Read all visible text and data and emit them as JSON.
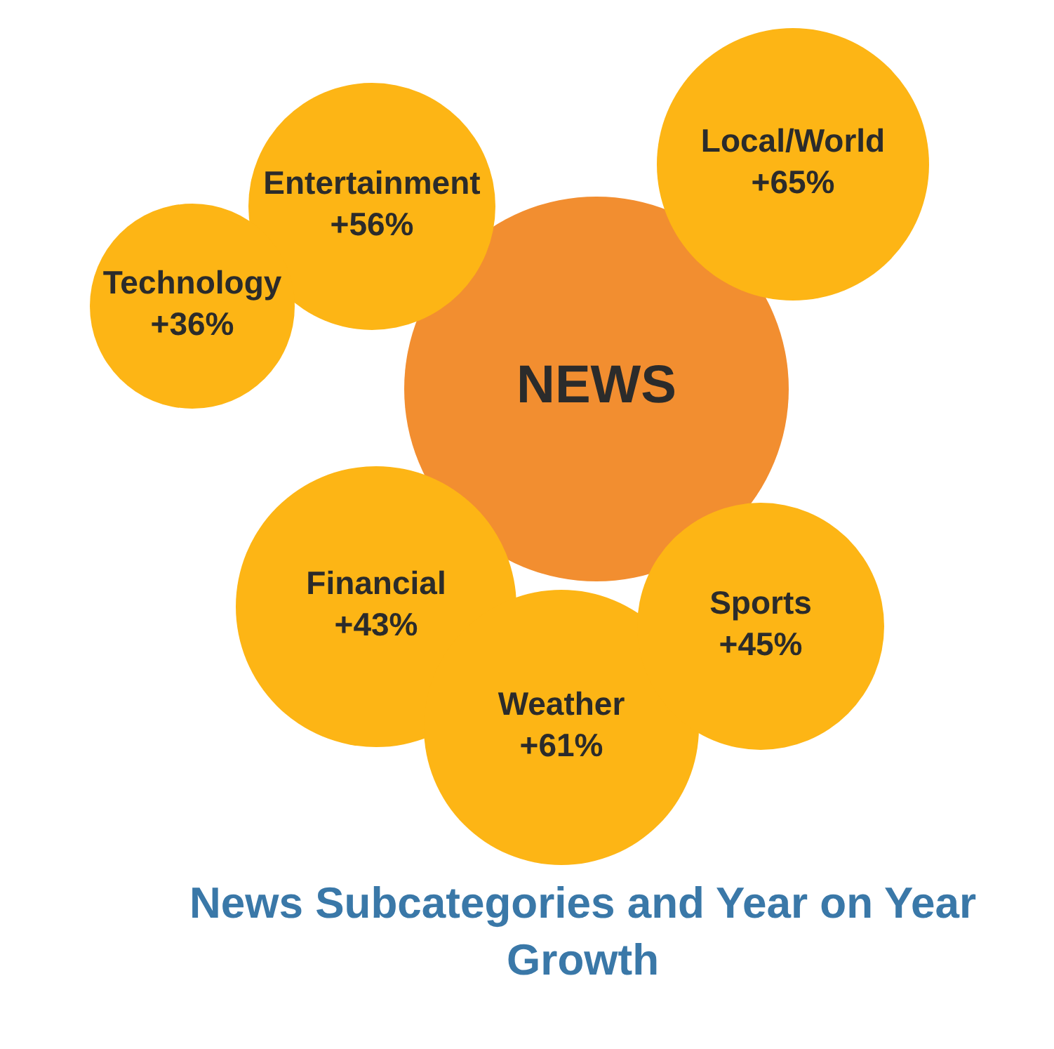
{
  "chart_data": {
    "type": "other",
    "title": "News Subcategories and Year on Year Growth",
    "annotations": [
      "NEWS"
    ],
    "categories": [
      "Entertainment",
      "Technology",
      "Local/World",
      "Financial",
      "Weather",
      "Sports"
    ],
    "values": [
      56,
      36,
      65,
      43,
      61,
      45
    ],
    "value_labels": [
      "+56%",
      "+36%",
      "+65%",
      "+43%",
      "+61%",
      "+45%"
    ],
    "colors": [
      "#fdb515",
      "#fdb515",
      "#fdb515",
      "#fdb515",
      "#fdb515",
      "#fdb515"
    ]
  }
}
